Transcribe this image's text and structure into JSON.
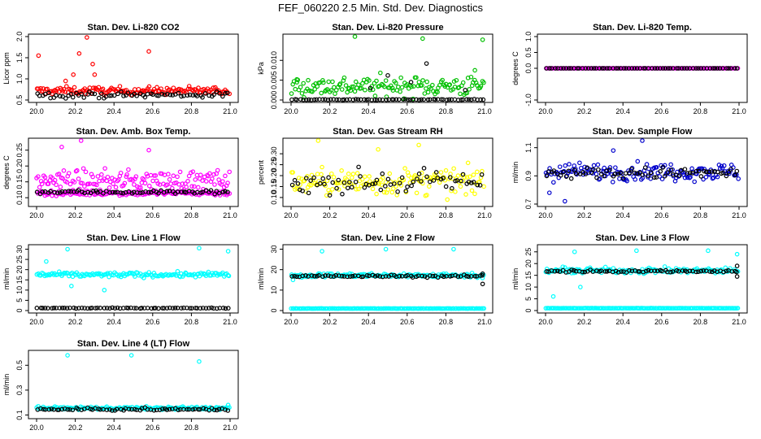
{
  "figure_title": "FEF_060220  2.5 Min. Std. Dev. Diagnostics",
  "chart_data": [
    {
      "type": "scatter",
      "title": "Stan. Dev. Li-820 CO2",
      "ylabel": "Licor ppm",
      "xlim": [
        20.0,
        21.0
      ],
      "ylim": [
        0.5,
        2.0
      ],
      "xticks": [
        "20.0",
        "20.2",
        "20.4",
        "20.6",
        "20.8",
        "21.0"
      ],
      "yticks": [
        "0.5",
        "1.0",
        "1.5",
        "2.0"
      ],
      "series": [
        {
          "color": "#ff0000",
          "base": 0.72,
          "spread": 0.09,
          "outliers": [
            [
              20.01,
              1.55
            ],
            [
              20.26,
              1.98
            ],
            [
              20.22,
              1.6
            ],
            [
              20.29,
              1.35
            ],
            [
              20.58,
              1.65
            ],
            [
              20.3,
              1.1
            ],
            [
              20.19,
              1.1
            ],
            [
              20.15,
              0.95
            ]
          ]
        },
        {
          "color": "#000000",
          "base": 0.62,
          "spread": 0.07,
          "outliers": []
        }
      ]
    },
    {
      "type": "scatter",
      "title": "Stan. Dev. Li-820 Pressure",
      "ylabel": "kPa",
      "xlim": [
        20.0,
        21.0
      ],
      "ylim": [
        0.0,
        0.016
      ],
      "xticks": [
        "20.0",
        "20.2",
        "20.4",
        "20.6",
        "20.8",
        "21.0"
      ],
      "yticks": [
        "0.000",
        "0.005",
        "0.010"
      ],
      "series": [
        {
          "color": "#00c000",
          "base": 0.0035,
          "spread": 0.0025,
          "outliers": [
            [
              20.33,
              0.016
            ],
            [
              20.68,
              0.0155
            ],
            [
              20.99,
              0.0152
            ],
            [
              20.03,
              0.0052
            ],
            [
              20.95,
              0.0075
            ]
          ]
        },
        {
          "color": "#000000",
          "base": 0.0001,
          "spread": 0.0001,
          "outliers": [
            [
              20.5,
              0.0062
            ],
            [
              20.7,
              0.0092
            ],
            [
              20.41,
              0.003
            ],
            [
              20.62,
              0.0045
            ],
            [
              20.9,
              0.0025
            ]
          ]
        }
      ]
    },
    {
      "type": "scatter",
      "title": "Stan. Dev. Li-820 Temp.",
      "ylabel": "degrees C",
      "xlim": [
        20.0,
        21.0
      ],
      "ylim": [
        -1.0,
        1.0
      ],
      "xticks": [
        "20.0",
        "20.2",
        "20.4",
        "20.6",
        "20.8",
        "21.0"
      ],
      "yticks": [
        "-1.0",
        "0.0",
        "0.5",
        "1.0"
      ],
      "series": [
        {
          "color": "#ff00ff",
          "base": 0.0,
          "spread": 0.0,
          "outliers": []
        },
        {
          "color": "#000000",
          "base": 0.0,
          "spread": 0.0,
          "outliers": []
        }
      ]
    },
    {
      "type": "scatter",
      "title": "Stan. Dev. Amb. Box Temp.",
      "ylabel": "degrees C",
      "xlim": [
        20.0,
        21.0
      ],
      "ylim": [
        0.08,
        0.28
      ],
      "xticks": [
        "20.0",
        "20.2",
        "20.4",
        "20.6",
        "20.8",
        "21.0"
      ],
      "yticks": [
        "0.10",
        "0.15",
        "0.20",
        "0.25"
      ],
      "series": [
        {
          "color": "#ff00ff",
          "base": 0.155,
          "spread": 0.03,
          "outliers": [
            [
              20.23,
              0.28
            ],
            [
              20.58,
              0.25
            ],
            [
              20.13,
              0.26
            ]
          ]
        },
        {
          "color": "#ff00ff",
          "base": 0.115,
          "spread": 0.008,
          "outliers": []
        },
        {
          "color": "#000000",
          "base": 0.118,
          "spread": 0.006,
          "outliers": []
        }
      ]
    },
    {
      "type": "scatter",
      "title": "Stan. Dev. Gas Stream RH",
      "ylabel": "percent",
      "xlim": [
        20.0,
        21.0
      ],
      "ylim": [
        0.07,
        0.36
      ],
      "xticks": [
        "20.0",
        "20.2",
        "20.4",
        "20.6",
        "20.8",
        "21.0"
      ],
      "yticks": [
        "0.10",
        "0.15",
        "0.20",
        "0.25",
        "0.30"
      ],
      "series": [
        {
          "color": "#ffff00",
          "base": 0.17,
          "spread": 0.06,
          "outliers": [
            [
              20.14,
              0.36
            ],
            [
              20.66,
              0.34
            ],
            [
              20.45,
              0.32
            ]
          ]
        },
        {
          "color": "#000000",
          "base": 0.17,
          "spread": 0.05,
          "outliers": []
        }
      ]
    },
    {
      "type": "scatter",
      "title": "Stan. Dev. Sample Flow",
      "ylabel": "ml/min",
      "xlim": [
        20.0,
        21.0
      ],
      "ylim": [
        0.7,
        1.15
      ],
      "xticks": [
        "20.0",
        "20.2",
        "20.4",
        "20.6",
        "20.8",
        "21.0"
      ],
      "yticks": [
        "0.7",
        "0.9",
        "1.1"
      ],
      "series": [
        {
          "color": "#0000cc",
          "base": 0.93,
          "spread": 0.06,
          "outliers": [
            [
              20.5,
              1.15
            ],
            [
              20.1,
              0.72
            ],
            [
              20.02,
              0.78
            ],
            [
              20.35,
              1.08
            ]
          ]
        },
        {
          "color": "#000000",
          "base": 0.92,
          "spread": 0.04,
          "outliers": []
        }
      ]
    },
    {
      "type": "scatter",
      "title": "Stan. Dev. Line 1 Flow",
      "ylabel": "ml/min",
      "xlim": [
        20.0,
        21.0
      ],
      "ylim": [
        0,
        31
      ],
      "xticks": [
        "20.0",
        "20.2",
        "20.4",
        "20.6",
        "20.8",
        "21.0"
      ],
      "yticks": [
        "0",
        "5",
        "10",
        "15",
        "20",
        "25",
        "30"
      ],
      "series": [
        {
          "color": "#00ffff",
          "base": 17.5,
          "spread": 1.2,
          "outliers": [
            [
              20.16,
              30
            ],
            [
              20.84,
              30.5
            ],
            [
              20.99,
              29
            ],
            [
              20.05,
              24
            ],
            [
              20.35,
              10
            ],
            [
              20.18,
              12
            ]
          ]
        },
        {
          "color": "#000000",
          "base": 1.2,
          "spread": 0.15,
          "outliers": []
        }
      ]
    },
    {
      "type": "scatter",
      "title": "Stan. Dev. Line 2 Flow",
      "ylabel": "ml/min",
      "xlim": [
        20.0,
        21.0
      ],
      "ylim": [
        0,
        31
      ],
      "xticks": [
        "20.0",
        "20.2",
        "20.4",
        "20.6",
        "20.8",
        "21.0"
      ],
      "yticks": [
        "0",
        "10",
        "20",
        "30"
      ],
      "series": [
        {
          "color": "#00ffff",
          "base": 17.2,
          "spread": 1.0,
          "outliers": [
            [
              20.16,
              29
            ],
            [
              20.49,
              30
            ],
            [
              20.84,
              30
            ],
            [
              20.01,
              15
            ]
          ]
        },
        {
          "color": "#000000",
          "base": 16.8,
          "spread": 0.6,
          "outliers": [
            [
              20.99,
              13
            ],
            [
              20.99,
              18
            ]
          ]
        },
        {
          "color": "#00ffff",
          "base": 1.0,
          "spread": 0.05,
          "outliers": []
        }
      ]
    },
    {
      "type": "scatter",
      "title": "Stan. Dev. Line 3 Flow",
      "ylabel": "ml/min",
      "xlim": [
        20.0,
        21.0
      ],
      "ylim": [
        0,
        27
      ],
      "xticks": [
        "20.0",
        "20.2",
        "20.4",
        "20.6",
        "20.8",
        "21.0"
      ],
      "yticks": [
        "0",
        "5",
        "10",
        "15",
        "20",
        "25"
      ],
      "series": [
        {
          "color": "#00ffff",
          "base": 17.0,
          "spread": 1.2,
          "outliers": [
            [
              20.15,
              25
            ],
            [
              20.47,
              25.5
            ],
            [
              20.84,
              25.5
            ],
            [
              20.04,
              6
            ],
            [
              20.18,
              10
            ],
            [
              20.99,
              24
            ]
          ]
        },
        {
          "color": "#000000",
          "base": 16.8,
          "spread": 0.5,
          "outliers": [
            [
              20.99,
              14.5
            ],
            [
              20.99,
              19
            ]
          ]
        },
        {
          "color": "#00ffff",
          "base": 1.0,
          "spread": 0.05,
          "outliers": []
        }
      ]
    },
    {
      "type": "scatter",
      "title": "Stan. Dev. Line 4 (LT) Flow",
      "ylabel": "ml/min",
      "xlim": [
        20.0,
        21.0
      ],
      "ylim": [
        0.09,
        0.6
      ],
      "xticks": [
        "20.0",
        "20.2",
        "20.4",
        "20.6",
        "20.8",
        "21.0"
      ],
      "yticks": [
        "0.1",
        "0.3",
        "0.5"
      ],
      "series": [
        {
          "color": "#00ffff",
          "base": 0.155,
          "spread": 0.012,
          "outliers": [
            [
              20.16,
              0.58
            ],
            [
              20.49,
              0.58
            ],
            [
              20.84,
              0.53
            ],
            [
              20.99,
              0.18
            ]
          ]
        },
        {
          "color": "#000000",
          "base": 0.145,
          "spread": 0.01,
          "outliers": []
        }
      ]
    }
  ]
}
